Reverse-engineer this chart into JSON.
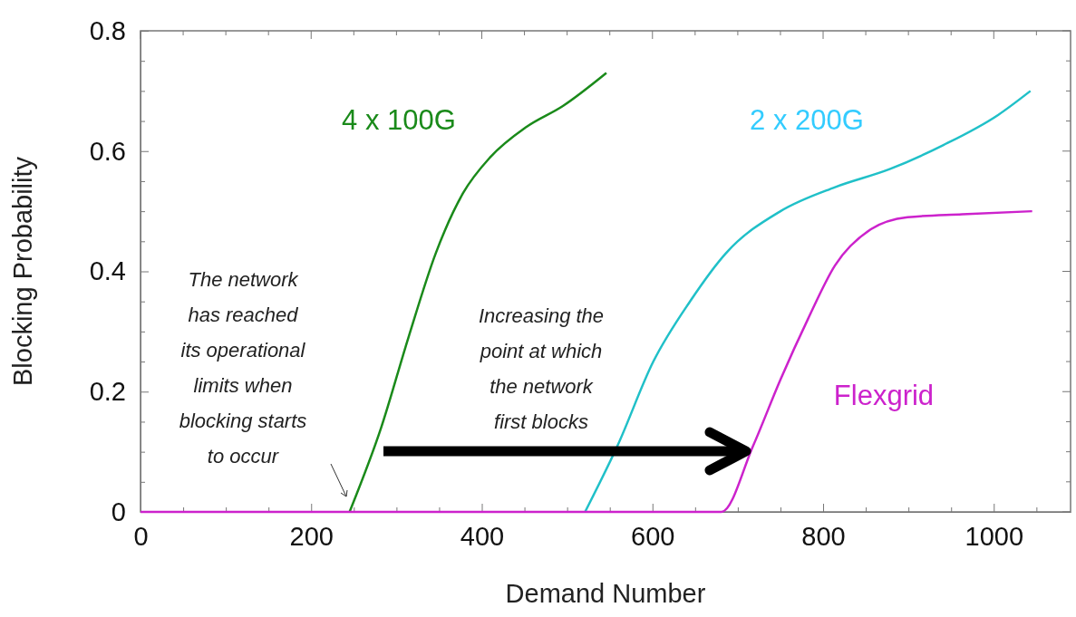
{
  "chart_data": {
    "type": "line",
    "xlabel": "Demand Number",
    "ylabel": "Blocking Probability",
    "xlim": [
      0,
      1090
    ],
    "ylim": [
      0,
      0.8
    ],
    "xticks": [
      0,
      {
        "value": 50,
        "label": null
      },
      200,
      {
        "value": 100,
        "label": null
      },
      {
        "value": 150,
        "label": null
      },
      {
        "value": 250,
        "label": null
      },
      {
        "value": 300,
        "label": null
      },
      {
        "value": 350,
        "label": null
      },
      400,
      {
        "value": 450,
        "label": null
      },
      {
        "value": 500,
        "label": null
      },
      {
        "value": 550,
        "label": null
      },
      600,
      {
        "value": 650,
        "label": null
      },
      {
        "value": 700,
        "label": null
      },
      {
        "value": 750,
        "label": null
      },
      800,
      {
        "value": 850,
        "label": null
      },
      {
        "value": 900,
        "label": null
      },
      {
        "value": 950,
        "label": null
      },
      1000,
      {
        "value": 1050,
        "label": null
      }
    ],
    "yticks": [
      0,
      {
        "value": 0.05,
        "label": null
      },
      {
        "value": 0.1,
        "label": null
      },
      {
        "value": 0.15,
        "label": null
      },
      0.2,
      {
        "value": 0.25,
        "label": null
      },
      {
        "value": 0.3,
        "label": null
      },
      {
        "value": 0.35,
        "label": null
      },
      0.4,
      {
        "value": 0.45,
        "label": null
      },
      {
        "value": 0.5,
        "label": null
      },
      {
        "value": 0.55,
        "label": null
      },
      0.6,
      {
        "value": 0.65,
        "label": null
      },
      {
        "value": 0.7,
        "label": null
      },
      {
        "value": 0.75,
        "label": null
      },
      0.8
    ],
    "grid": false,
    "marker": "none",
    "line_style": "solid",
    "series": [
      {
        "name": "4 x 100G",
        "color": "#1a8a1a",
        "x": [
          245,
          282,
          314,
          346,
          378,
          410,
          452,
          495,
          546
        ],
        "values": [
          0,
          0.14,
          0.29,
          0.43,
          0.53,
          0.59,
          0.64,
          0.675,
          0.73
        ]
      },
      {
        "name": "2 x 200G",
        "color": "#20c0c8",
        "x": [
          521,
          559,
          601,
          644,
          686,
          750,
          814,
          878,
          941,
          1005,
          1043
        ],
        "values": [
          0,
          0.11,
          0.25,
          0.35,
          0.43,
          0.5,
          0.54,
          0.57,
          0.61,
          0.66,
          0.7
        ]
      },
      {
        "name": "Flexgrid",
        "color": "#cc22cc",
        "x": [
          0,
          681,
          718,
          750,
          782,
          814,
          856,
          899,
          963,
          1045
        ],
        "values": [
          0,
          0,
          0.11,
          0.22,
          0.32,
          0.41,
          0.47,
          0.49,
          0.495,
          0.5
        ]
      }
    ],
    "annotations": [
      "The network has reached its operational limits when blocking starts to occur",
      "Increasing the point at which the network first blocks"
    ]
  }
}
